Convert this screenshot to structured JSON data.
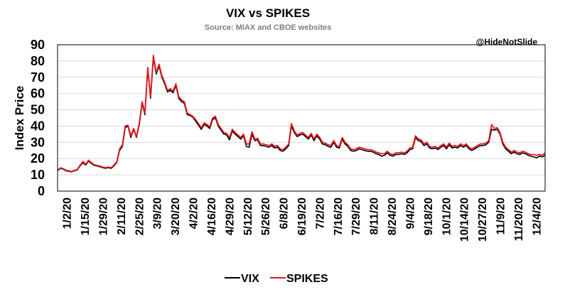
{
  "chart_data": {
    "type": "line",
    "title": "VIX vs SPIKES",
    "subtitle": "Source: MIAX and CBOE websites",
    "annotation": "@HideNotSlide",
    "xlabel": "",
    "ylabel": "Index Price",
    "ylim": [
      0,
      90
    ],
    "yticks": [
      0,
      10,
      20,
      30,
      40,
      50,
      60,
      70,
      80,
      90
    ],
    "grid": true,
    "legend_position": "bottom",
    "x_tick_labels": [
      "1/2/20",
      "1/15/20",
      "1/29/20",
      "2/11/20",
      "2/25/20",
      "3/9/20",
      "3/20/20",
      "4/2/20",
      "4/16/20",
      "4/29/20",
      "5/12/20",
      "5/26/20",
      "6/8/20",
      "6/19/20",
      "7/2/20",
      "7/16/20",
      "7/29/20",
      "8/11/20",
      "8/24/20",
      "9/4/20",
      "9/18/20",
      "10/1/20",
      "10/14/20",
      "10/27/20",
      "11/9/20",
      "11/20/20",
      "12/4/20"
    ],
    "series": [
      {
        "name": "VIX",
        "color": "#000000",
        "values": [
          12.5,
          14.0,
          13.5,
          12.5,
          12.2,
          11.8,
          12.5,
          13.0,
          15.5,
          17.5,
          16.0,
          18.5,
          17.0,
          15.8,
          15.5,
          15.0,
          14.5,
          14.0,
          14.5,
          14.0,
          15.5,
          17.5,
          25.0,
          27.5,
          39.0,
          40.0,
          33.0,
          38.0,
          33.0,
          41.0,
          54.0,
          47.0,
          75.0,
          57.0,
          82.0,
          72.0,
          77.0,
          70.0,
          66.0,
          61.0,
          62.0,
          60.5,
          65.0,
          57.0,
          55.0,
          54.0,
          47.0,
          46.5,
          45.5,
          43.0,
          40.5,
          38.0,
          41.0,
          40.0,
          38.5,
          44.0,
          45.0,
          40.0,
          37.5,
          35.0,
          34.5,
          31.5,
          37.0,
          35.0,
          33.5,
          32.0,
          34.0,
          27.5,
          27.0,
          35.0,
          31.0,
          31.5,
          28.0,
          28.0,
          27.5,
          27.0,
          28.0,
          26.5,
          27.0,
          25.0,
          24.5,
          26.0,
          28.0,
          40.0,
          36.0,
          33.5,
          34.5,
          35.0,
          33.5,
          32.0,
          34.5,
          31.0,
          34.0,
          32.0,
          29.0,
          28.5,
          27.5,
          27.0,
          30.0,
          27.0,
          26.5,
          32.0,
          29.0,
          27.5,
          25.0,
          24.5,
          25.0,
          26.0,
          25.5,
          25.0,
          24.5,
          24.5,
          24.0,
          23.0,
          22.5,
          21.5,
          22.0,
          23.5,
          22.0,
          21.5,
          22.5,
          22.5,
          23.0,
          22.5,
          23.5,
          25.5,
          26.0,
          33.0,
          31.0,
          30.5,
          28.0,
          29.0,
          26.5,
          26.0,
          26.5,
          25.5,
          27.0,
          28.0,
          26.0,
          28.5,
          26.5,
          27.0,
          26.5,
          28.0,
          27.0,
          28.0,
          26.0,
          25.0,
          26.0,
          27.0,
          28.0,
          28.0,
          28.5,
          30.0,
          38.0,
          37.5,
          38.0,
          35.0,
          29.0,
          26.0,
          24.5,
          23.0,
          24.0,
          23.0,
          22.5,
          23.5,
          23.0,
          22.0,
          21.5,
          21.0,
          20.5,
          21.5,
          21.0,
          22.0
        ]
      },
      {
        "name": "SPIKES",
        "color": "#e8141e",
        "values": [
          12.8,
          14.3,
          13.8,
          12.8,
          12.5,
          12.0,
          12.8,
          13.3,
          16.0,
          18.2,
          16.5,
          19.0,
          17.5,
          16.2,
          15.8,
          15.4,
          14.8,
          14.4,
          14.8,
          14.4,
          16.0,
          18.0,
          25.8,
          28.5,
          40.0,
          40.5,
          34.0,
          38.5,
          33.5,
          42.0,
          55.0,
          48.0,
          76.0,
          58.0,
          83.5,
          73.0,
          78.0,
          71.0,
          67.0,
          62.0,
          63.0,
          61.5,
          66.0,
          58.0,
          56.0,
          55.0,
          48.0,
          47.0,
          46.0,
          44.0,
          41.5,
          39.0,
          42.0,
          41.0,
          39.5,
          45.0,
          46.0,
          41.0,
          38.5,
          36.0,
          35.5,
          33.0,
          38.0,
          36.0,
          34.5,
          33.0,
          35.0,
          29.0,
          29.0,
          36.5,
          32.0,
          32.5,
          29.0,
          29.0,
          28.5,
          28.0,
          29.0,
          27.5,
          28.0,
          26.0,
          25.5,
          27.0,
          29.0,
          41.5,
          37.0,
          34.5,
          35.5,
          36.0,
          34.5,
          33.0,
          35.5,
          32.0,
          35.0,
          33.0,
          30.0,
          29.5,
          28.5,
          28.0,
          31.0,
          28.0,
          27.5,
          33.0,
          30.0,
          28.5,
          26.0,
          25.5,
          26.0,
          27.0,
          26.5,
          26.0,
          25.5,
          25.5,
          25.0,
          24.0,
          23.5,
          23.0,
          23.0,
          24.5,
          23.0,
          22.5,
          23.5,
          23.5,
          24.0,
          23.5,
          24.5,
          26.5,
          27.0,
          34.0,
          32.0,
          31.5,
          29.0,
          30.0,
          27.5,
          27.0,
          27.5,
          26.5,
          28.0,
          29.0,
          27.0,
          29.5,
          27.5,
          28.0,
          27.5,
          29.0,
          28.0,
          29.0,
          27.0,
          26.0,
          27.0,
          28.0,
          29.0,
          29.0,
          29.5,
          31.0,
          41.0,
          38.5,
          39.0,
          36.0,
          30.0,
          27.0,
          25.5,
          24.0,
          25.0,
          24.0,
          23.5,
          24.5,
          24.0,
          23.0,
          22.5,
          22.5,
          22.0,
          22.5,
          22.0,
          23.5
        ]
      }
    ]
  }
}
